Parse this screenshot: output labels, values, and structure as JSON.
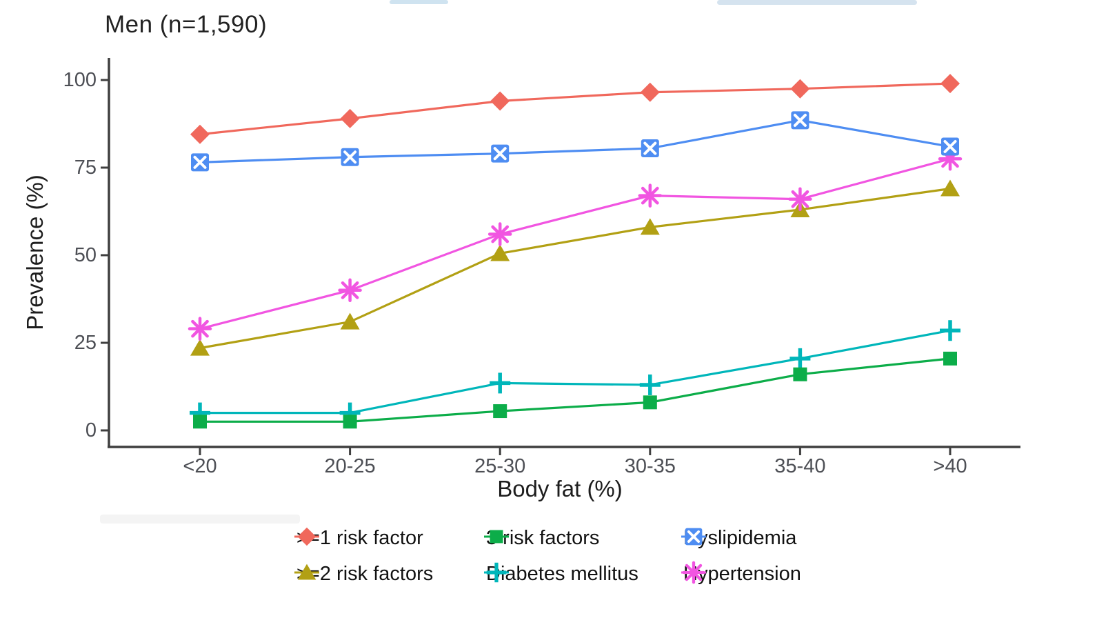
{
  "chart_data": {
    "type": "line",
    "title": "Men (n=1,590)",
    "xlabel": "Body fat (%)",
    "ylabel": "Prevalence (%)",
    "categories": [
      "<20",
      "20-25",
      "25-30",
      "30-35",
      "35-40",
      ">40"
    ],
    "ylim": [
      0,
      100
    ],
    "yticks": [
      0,
      25,
      50,
      75,
      100
    ],
    "grid": false,
    "legend_position": "bottom",
    "series": [
      {
        "name": ">=1 risk factor",
        "marker": "diamond",
        "color": "#f0685c",
        "values": [
          84.5,
          89,
          94,
          96.5,
          97.5,
          99
        ]
      },
      {
        "name": ">=2 risk factors",
        "marker": "triangle",
        "color": "#b2a014",
        "values": [
          23.5,
          31,
          50.5,
          58,
          63,
          69
        ]
      },
      {
        "name": "3 risk factors",
        "marker": "square",
        "color": "#0cad49",
        "values": [
          2.5,
          2.5,
          5.5,
          8,
          16,
          20.5
        ]
      },
      {
        "name": "Diabetes mellitus",
        "marker": "plus",
        "color": "#00b6ba",
        "values": [
          5,
          5,
          13.5,
          13,
          20.5,
          28.5
        ]
      },
      {
        "name": "Dyslipidemia",
        "marker": "square-x",
        "color": "#4e8df2",
        "values": [
          76.5,
          78,
          79,
          80.5,
          88.5,
          81
        ]
      },
      {
        "name": "Hypertension",
        "marker": "asterisk",
        "color": "#f155e1",
        "values": [
          29,
          40,
          56,
          67,
          66,
          77.5
        ]
      }
    ],
    "legend_rows": [
      [
        ">=1 risk factor",
        "3 risk factors",
        "Dyslipidemia"
      ],
      [
        ">=2 risk factors",
        "Diabetes mellitus",
        "Hypertension"
      ]
    ]
  }
}
